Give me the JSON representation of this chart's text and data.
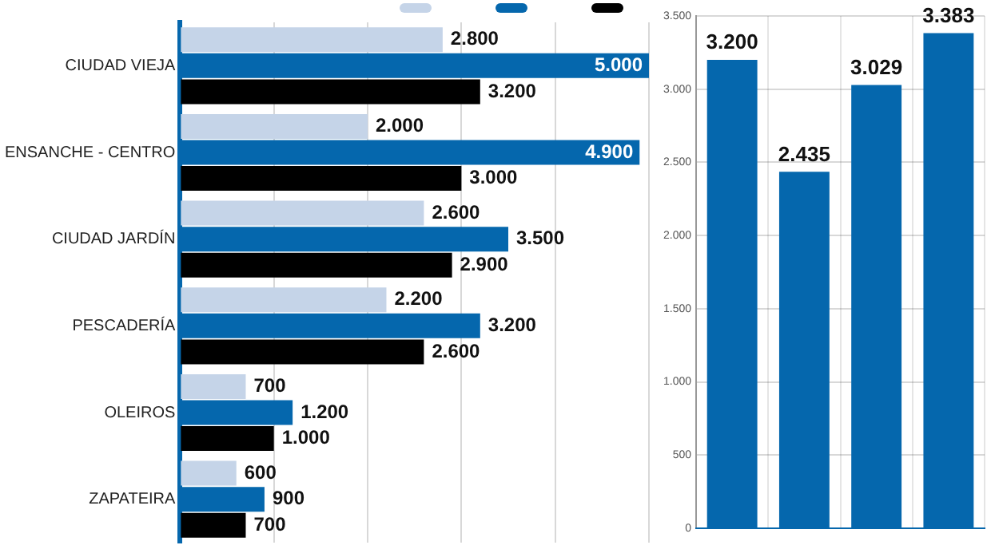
{
  "chart_data": [
    {
      "type": "bar",
      "orientation": "horizontal",
      "categories": [
        "CIUDAD VIEJA",
        "ENSANCHE - CENTRO",
        "CIUDAD JARDÍN",
        "PESCADERÍA",
        "OLEIROS",
        "ZAPATEIRA"
      ],
      "series": [
        {
          "color": "#c5d4e8",
          "values": [
            2800,
            2000,
            2600,
            2200,
            700,
            600
          ],
          "value_labels": [
            "2.800",
            "2.000",
            "2.600",
            "2.200",
            "700",
            "600"
          ]
        },
        {
          "color": "#0567ad",
          "values": [
            5000,
            4900,
            3500,
            3200,
            1200,
            900
          ],
          "value_labels": [
            "5.000",
            "4.900",
            "3.500",
            "3.200",
            "1.200",
            "900"
          ]
        },
        {
          "color": "#000000",
          "values": [
            3200,
            3000,
            2900,
            2600,
            1000,
            700
          ],
          "value_labels": [
            "3.200",
            "3.000",
            "2.900",
            "2.600",
            "1.000",
            "700"
          ]
        }
      ],
      "xlim": [
        0,
        5000
      ],
      "xticks": [
        {
          "value": 0,
          "label": null
        },
        {
          "value": 1000,
          "label": null
        },
        {
          "value": 2000,
          "label": null
        },
        {
          "value": 3000,
          "label": null
        },
        {
          "value": 4000,
          "label": null
        },
        {
          "value": 5000,
          "label": null
        }
      ],
      "tick_labels": "y",
      "grid": "x"
    },
    {
      "type": "bar",
      "categories": [
        null,
        null,
        null,
        null
      ],
      "values": [
        3200,
        2435,
        3029,
        3383
      ],
      "color": "#0567ad",
      "value_labels": [
        "3.200",
        "2.435",
        "3.029",
        "3.383"
      ],
      "ylim": [
        0,
        3500
      ],
      "yticks": [
        {
          "value": 0,
          "label": "0"
        },
        {
          "value": 500,
          "label": "500"
        },
        {
          "value": 1000,
          "label": "1.000"
        },
        {
          "value": 1500,
          "label": "1.500"
        },
        {
          "value": 2000,
          "label": "2.000"
        },
        {
          "value": 2500,
          "label": "2.500"
        },
        {
          "value": 3000,
          "label": "3.000"
        },
        {
          "value": 3500,
          "label": "3.500"
        }
      ],
      "grid": true
    }
  ]
}
